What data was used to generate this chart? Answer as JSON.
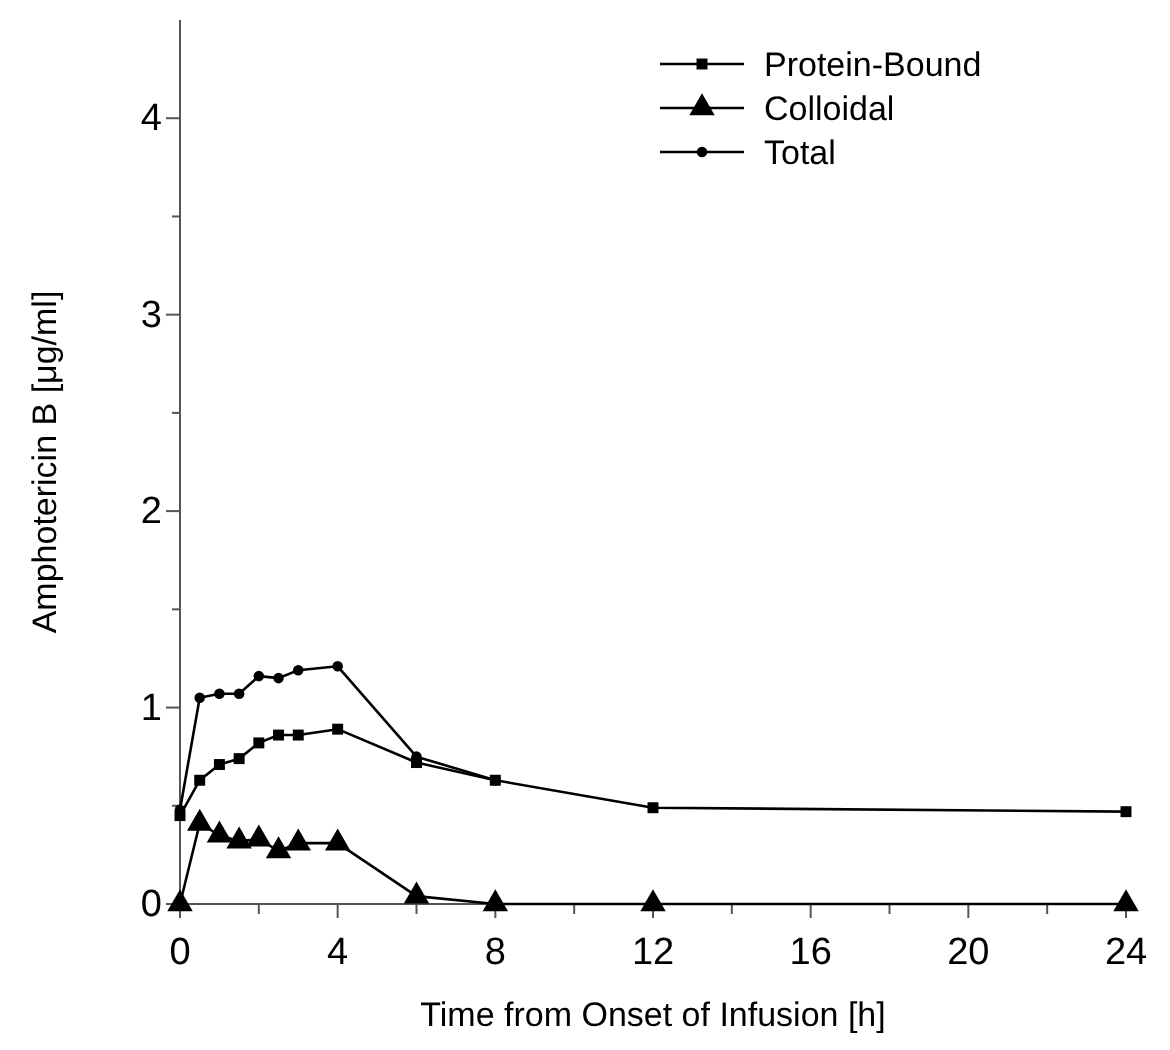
{
  "chart_data": {
    "type": "line",
    "xlabel": "Time from Onset of Infusion [h]",
    "ylabel": "Amphotericin B [μg/ml]",
    "xlim": [
      0,
      24
    ],
    "xticks": [
      0,
      {
        "value": 2,
        "label": null
      },
      4,
      {
        "value": 6,
        "label": null
      },
      8,
      {
        "value": 10,
        "label": null
      },
      12,
      {
        "value": 14,
        "label": null
      },
      16,
      {
        "value": 18,
        "label": null
      },
      20,
      {
        "value": 22,
        "label": null
      },
      24
    ],
    "ylim": [
      0,
      4.5
    ],
    "yticks": [
      0,
      {
        "value": 0.5,
        "label": null
      },
      1,
      {
        "value": 1.5,
        "label": null
      },
      2,
      {
        "value": 2.5,
        "label": null
      },
      3,
      {
        "value": 3.5,
        "label": null
      },
      4
    ],
    "grid": false,
    "legend": "top right",
    "line_style": "solid",
    "series": [
      {
        "name": "Protein-Bound",
        "color": "#000000",
        "marker": "square",
        "x": [
          0,
          0.5,
          1,
          1.5,
          2,
          2.5,
          3,
          4,
          6,
          8,
          12,
          24
        ],
        "values": [
          0.45,
          0.63,
          0.71,
          0.74,
          0.82,
          0.86,
          0.86,
          0.89,
          0.72,
          0.63,
          0.49,
          0.47
        ]
      },
      {
        "name": "Colloidal",
        "color": "#000000",
        "marker": "triangle",
        "x": [
          0,
          0.5,
          1,
          1.5,
          2,
          2.5,
          3,
          4,
          6,
          8,
          12,
          24
        ],
        "values": [
          0,
          0.41,
          0.35,
          0.32,
          0.33,
          0.27,
          0.31,
          0.31,
          0.04,
          0,
          0,
          0
        ]
      },
      {
        "name": "Total",
        "color": "#000000",
        "marker": "circle",
        "x": [
          0,
          0.5,
          1,
          1.5,
          2,
          2.5,
          3,
          4,
          6,
          8
        ],
        "values": [
          0.48,
          1.05,
          1.07,
          1.07,
          1.16,
          1.15,
          1.19,
          1.21,
          0.75,
          0.63
        ]
      }
    ]
  }
}
